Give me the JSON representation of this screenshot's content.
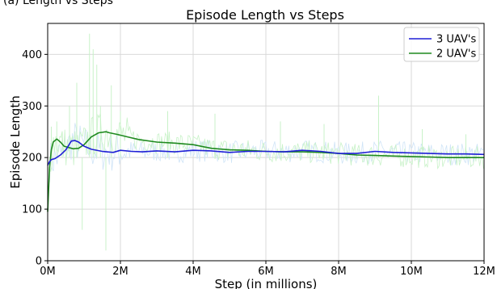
{
  "caption": "(a)                                         Length vs Steps",
  "chart_data": {
    "type": "line",
    "title": "Episode Length vs Steps",
    "xlabel": "Step (in millions)",
    "ylabel": "Episode Length",
    "xlim": [
      0,
      12
    ],
    "ylim": [
      0,
      460
    ],
    "x_ticks": [
      0,
      2,
      4,
      6,
      8,
      10,
      12
    ],
    "x_tick_labels": [
      "0M",
      "2M",
      "4M",
      "6M",
      "8M",
      "10M",
      "12M"
    ],
    "y_ticks": [
      0,
      100,
      200,
      300,
      400
    ],
    "y_tick_labels": [
      "0",
      "100",
      "200",
      "300",
      "400"
    ],
    "grid": true,
    "legend_position": "top-right",
    "series": [
      {
        "name": "3 UAV's",
        "color": "#1f1fd6",
        "raw_color": "#cfe4f7",
        "x": [
          0.0,
          0.05,
          0.1,
          0.2,
          0.35,
          0.5,
          0.65,
          0.75,
          0.85,
          1.0,
          1.2,
          1.5,
          1.8,
          2.0,
          2.3,
          2.6,
          3.0,
          3.5,
          4.0,
          4.5,
          5.0,
          5.5,
          6.0,
          6.5,
          7.0,
          7.5,
          8.0,
          8.5,
          9.0,
          9.5,
          10.0,
          10.5,
          11.0,
          11.5,
          12.0
        ],
        "values": [
          185,
          192,
          196,
          198,
          205,
          215,
          232,
          233,
          230,
          222,
          216,
          212,
          210,
          214,
          212,
          211,
          213,
          211,
          214,
          213,
          210,
          212,
          212,
          211,
          214,
          212,
          208,
          208,
          212,
          210,
          209,
          208,
          207,
          207,
          206
        ]
      },
      {
        "name": "2 UAV's",
        "color": "#1f8a1f",
        "raw_color": "#c8f2c8",
        "x": [
          0.0,
          0.05,
          0.1,
          0.15,
          0.25,
          0.35,
          0.45,
          0.55,
          0.7,
          0.85,
          1.0,
          1.2,
          1.4,
          1.6,
          1.7,
          1.9,
          2.2,
          2.5,
          3.0,
          3.5,
          4.0,
          4.5,
          5.0,
          5.5,
          6.0,
          6.5,
          7.0,
          7.5,
          8.0,
          8.5,
          9.0,
          9.5,
          10.0,
          10.5,
          11.0,
          11.5,
          12.0
        ],
        "values": [
          95,
          180,
          215,
          230,
          236,
          230,
          222,
          220,
          217,
          218,
          225,
          240,
          248,
          250,
          248,
          245,
          240,
          235,
          230,
          228,
          225,
          218,
          215,
          214,
          212,
          211,
          211,
          210,
          208,
          205,
          204,
          203,
          202,
          201,
          200,
          200,
          200
        ]
      }
    ],
    "raw_noise": [
      {
        "x": 0.1,
        "y": 260
      },
      {
        "x": 0.25,
        "y": 270
      },
      {
        "x": 0.4,
        "y": 250
      },
      {
        "x": 0.6,
        "y": 300
      },
      {
        "x": 0.8,
        "y": 345
      },
      {
        "x": 0.95,
        "y": 60
      },
      {
        "x": 1.15,
        "y": 440
      },
      {
        "x": 1.25,
        "y": 410
      },
      {
        "x": 1.35,
        "y": 380
      },
      {
        "x": 1.45,
        "y": 300
      },
      {
        "x": 1.6,
        "y": 20
      },
      {
        "x": 1.75,
        "y": 340
      },
      {
        "x": 2.0,
        "y": 290
      },
      {
        "x": 3.3,
        "y": 290
      },
      {
        "x": 4.6,
        "y": 285
      },
      {
        "x": 6.4,
        "y": 270
      },
      {
        "x": 7.6,
        "y": 265
      },
      {
        "x": 9.1,
        "y": 320
      },
      {
        "x": 10.3,
        "y": 255
      },
      {
        "x": 11.5,
        "y": 245
      }
    ]
  }
}
